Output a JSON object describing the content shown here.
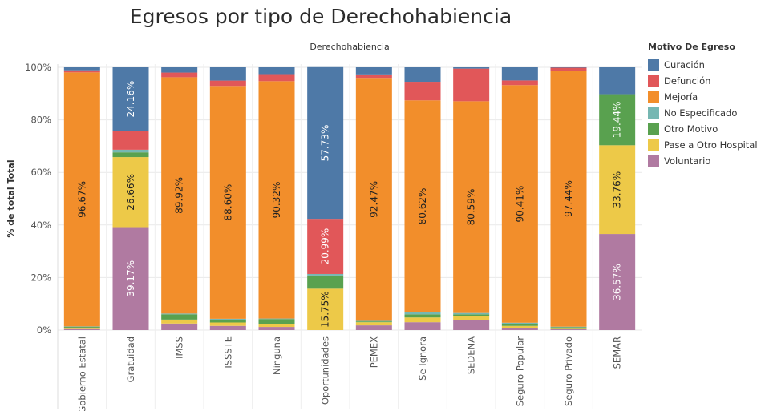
{
  "title": "Egresos por tipo de Derechohabiencia",
  "chart_data": {
    "type": "bar",
    "stacked": true,
    "normalized": true,
    "title": "Egresos por tipo de Derechohabiencia",
    "column_header": "Derechohabiencia",
    "ylabel": "% de total Total",
    "xlabel": "",
    "ylim": [
      0,
      100
    ],
    "yticks": [
      "0%",
      "20%",
      "40%",
      "60%",
      "80%",
      "100%"
    ],
    "grid": true,
    "legend_position": "right",
    "legend_title": "Motivo De Egreso",
    "categories": [
      "Gobierno Estatal",
      "Gratuidad",
      "IMSS",
      "ISSSTE",
      "Ninguna",
      "Oportunidades",
      "PEMEX",
      "Se Ignora",
      "SEDENA",
      "Seguro Popular",
      "Seguro Privado",
      "SEMAR"
    ],
    "series": [
      {
        "name": "Voluntario",
        "color": "#b07aa1",
        "values": [
          0.4,
          39.17,
          2.5,
          1.6,
          1.2,
          0.0,
          1.8,
          3.0,
          3.7,
          0.8,
          0.3,
          36.57
        ]
      },
      {
        "name": "Pase a Otro Hospital",
        "color": "#edc948",
        "values": [
          0.3,
          26.66,
          1.5,
          1.3,
          1.2,
          15.75,
          1.2,
          1.8,
          1.5,
          0.8,
          0.2,
          33.76
        ]
      },
      {
        "name": "Otro Motivo",
        "color": "#59a14f",
        "values": [
          0.5,
          1.8,
          2.0,
          0.8,
          1.8,
          5.0,
          0.3,
          1.2,
          0.8,
          0.8,
          0.6,
          19.44
        ]
      },
      {
        "name": "No Especificado",
        "color": "#76b7b2",
        "values": [
          0.2,
          1.0,
          0.3,
          0.6,
          0.2,
          0.6,
          0.2,
          0.8,
          0.5,
          0.4,
          0.2,
          0.0
        ]
      },
      {
        "name": "Mejoría",
        "color": "#f28e2b",
        "values": [
          96.67,
          0.0,
          89.92,
          88.6,
          90.32,
          0.0,
          92.47,
          80.62,
          80.59,
          90.41,
          97.44,
          0.0
        ]
      },
      {
        "name": "Defunción",
        "color": "#e15759",
        "values": [
          0.8,
          7.21,
          1.78,
          2.04,
          2.68,
          20.99,
          1.33,
          7.08,
          12.41,
          1.79,
          1.1,
          0.0
        ]
      },
      {
        "name": "Curación",
        "color": "#4e79a7",
        "values": [
          1.13,
          24.16,
          2.0,
          5.06,
          2.6,
          57.73,
          2.7,
          5.5,
          0.5,
          5.0,
          0.16,
          10.23
        ]
      }
    ],
    "data_labels": [
      {
        "category": "Gobierno Estatal",
        "series": "Mejoría",
        "text": "96.67%"
      },
      {
        "category": "Gratuidad",
        "series": "Curación",
        "text": "24.16%"
      },
      {
        "category": "Gratuidad",
        "series": "Pase a Otro Hospital",
        "text": "26.66%"
      },
      {
        "category": "Gratuidad",
        "series": "Voluntario",
        "text": "39.17%"
      },
      {
        "category": "IMSS",
        "series": "Mejoría",
        "text": "89.92%"
      },
      {
        "category": "ISSSTE",
        "series": "Mejoría",
        "text": "88.60%"
      },
      {
        "category": "Ninguna",
        "series": "Mejoría",
        "text": "90.32%"
      },
      {
        "category": "Oportunidades",
        "series": "Curación",
        "text": "57.73%"
      },
      {
        "category": "Oportunidades",
        "series": "Defunción",
        "text": "20.99%"
      },
      {
        "category": "Oportunidades",
        "series": "Pase a Otro Hospital",
        "text": "15.75%"
      },
      {
        "category": "PEMEX",
        "series": "Mejoría",
        "text": "92.47%"
      },
      {
        "category": "Se Ignora",
        "series": "Mejoría",
        "text": "80.62%"
      },
      {
        "category": "SEDENA",
        "series": "Mejoría",
        "text": "80.59%"
      },
      {
        "category": "Seguro Popular",
        "series": "Mejoría",
        "text": "90.41%"
      },
      {
        "category": "Seguro Privado",
        "series": "Mejoría",
        "text": "97.44%"
      },
      {
        "category": "SEMAR",
        "series": "Otro Motivo",
        "text": "19.44%"
      },
      {
        "category": "SEMAR",
        "series": "Pase a Otro Hospital",
        "text": "33.76%"
      },
      {
        "category": "SEMAR",
        "series": "Voluntario",
        "text": "36.57%"
      }
    ],
    "legend_order": [
      "Curación",
      "Defunción",
      "Mejoría",
      "No Especificado",
      "Otro Motivo",
      "Pase a Otro Hospital",
      "Voluntario"
    ]
  }
}
